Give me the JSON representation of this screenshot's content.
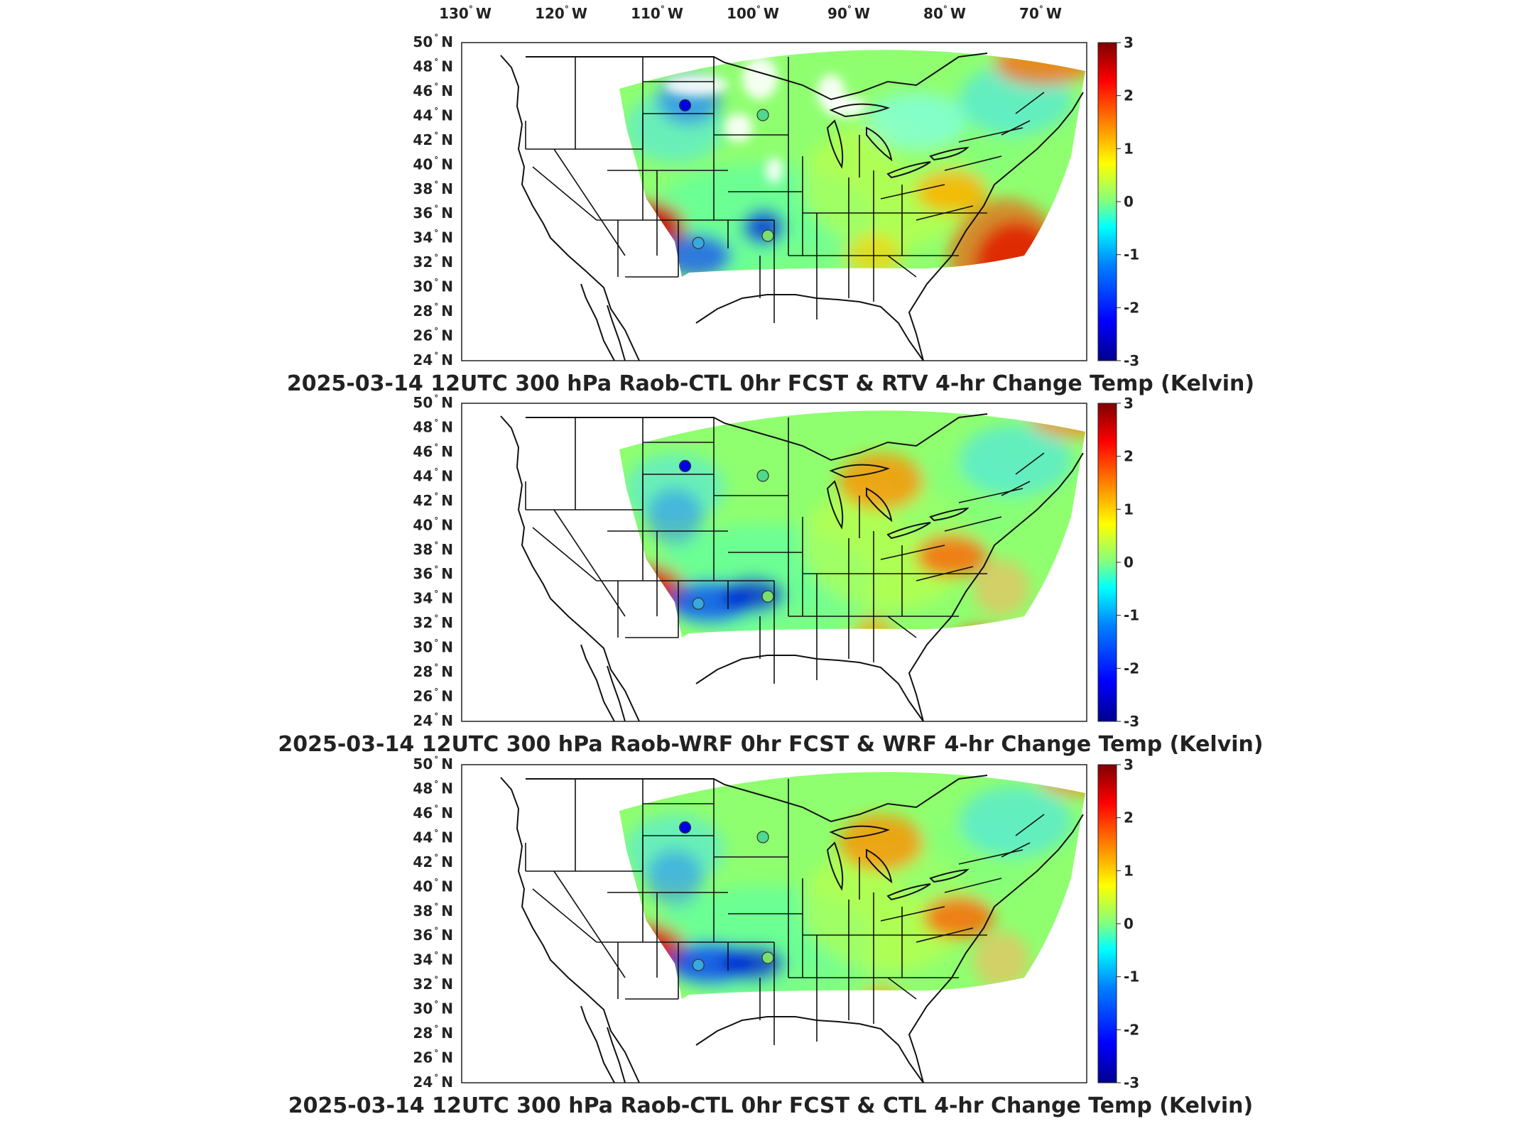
{
  "colorbar": {
    "ticks": [
      "3",
      "2",
      "1",
      "0",
      "-1",
      "-2",
      "-3"
    ],
    "colors": [
      "#00008f",
      "#0000ff",
      "#0080ff",
      "#00ffff",
      "#80ff80",
      "#ffff00",
      "#ff8000",
      "#ff0000",
      "#800000"
    ]
  },
  "lon_labels": [
    "130",
    "W",
    "120",
    "W",
    "110",
    "W",
    "100",
    "W",
    "90",
    "W",
    "80",
    "W",
    "70",
    "W"
  ],
  "lat_labels": [
    "50",
    "48",
    "46",
    "44",
    "42",
    "40",
    "38",
    "36",
    "34",
    "32",
    "30",
    "28",
    "26",
    "24"
  ],
  "lat_hemisphere": "N",
  "degree_symbol": "°",
  "panels": [
    {
      "title": "2025-03-14 12UTC 300 hPa Raob-CTL 0hr FCST & RTV 4-hr Change Temp (Kelvin)",
      "variant": "rtv"
    },
    {
      "title": "2025-03-14 12UTC 300 hPa Raob-WRF 0hr FCST & WRF 4-hr Change Temp (Kelvin)",
      "variant": "wrf"
    },
    {
      "title": "2025-03-14 12UTC 300 hPa Raob-CTL 0hr FCST & CTL 4-hr Change Temp (Kelvin)",
      "variant": "ctl"
    }
  ],
  "raob_markers": [
    {
      "name": "north-dakota-raob",
      "color": "#0000e0"
    },
    {
      "name": "minnesota-raob",
      "color": "#4fd98a"
    },
    {
      "name": "oklahoma-raob",
      "color": "#38a8e0"
    },
    {
      "name": "missouri-raob",
      "color": "#79e070"
    }
  ]
}
